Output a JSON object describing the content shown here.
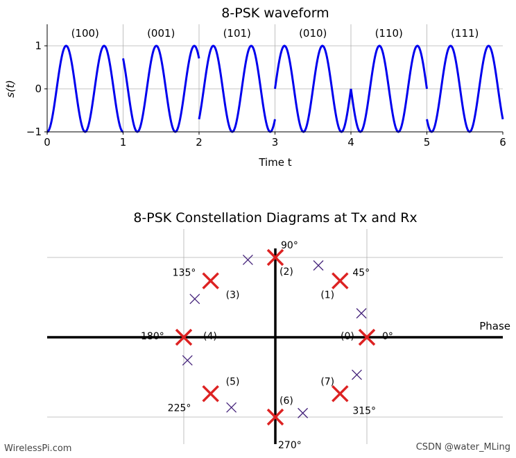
{
  "chart_data": [
    {
      "type": "line",
      "title": "8-PSK waveform",
      "xlabel": "Time t",
      "ylabel": "s(t)",
      "xlim": [
        0,
        6
      ],
      "ylim": [
        -1,
        1.5
      ],
      "x_ticks": [
        "0",
        "1",
        "2",
        "3",
        "4",
        "5",
        "6"
      ],
      "y_ticks": [
        "−1",
        "0",
        "1"
      ],
      "carrier_cycles_per_symbol": 2,
      "series": [
        {
          "color": "#0000ee"
        }
      ],
      "symbols": [
        {
          "label": "(100)",
          "phase_deg": 180
        },
        {
          "label": "(001)",
          "phase_deg": 45
        },
        {
          "label": "(101)",
          "phase_deg": 225
        },
        {
          "label": "(010)",
          "phase_deg": 270
        },
        {
          "label": "(110)",
          "phase_deg": 90
        },
        {
          "label": "(111)",
          "phase_deg": 135
        }
      ],
      "grid": true
    },
    {
      "type": "scatter",
      "title": "8-PSK Constellation Diagrams at Tx and Rx",
      "xlabel": "Phase",
      "xlim": [
        -1.25,
        1.25
      ],
      "ylim": [
        -1.15,
        1.15
      ],
      "grid": true,
      "tx_color": "#dd2222",
      "rx_color": "#44227a",
      "tx_points": [
        {
          "x": 1.0,
          "y": 0.0,
          "index": "(0)",
          "angle": "0°"
        },
        {
          "x": 0.707,
          "y": 0.707,
          "index": "(1)",
          "angle": "45°"
        },
        {
          "x": 0.0,
          "y": 1.0,
          "index": "(2)",
          "angle": "90°"
        },
        {
          "x": -0.707,
          "y": 0.707,
          "index": "(3)",
          "angle": "135°"
        },
        {
          "x": -1.0,
          "y": 0.0,
          "index": "(4)",
          "angle": "180°"
        },
        {
          "x": -0.707,
          "y": -0.707,
          "index": "(5)",
          "angle": "225°"
        },
        {
          "x": 0.0,
          "y": -1.0,
          "index": "(6)",
          "angle": "270°"
        },
        {
          "x": 0.707,
          "y": -0.707,
          "index": "(7)",
          "angle": "315°"
        }
      ],
      "rx_points": [
        {
          "x": 0.94,
          "y": 0.3
        },
        {
          "x": 0.47,
          "y": 0.9
        },
        {
          "x": -0.3,
          "y": 0.97
        },
        {
          "x": -0.88,
          "y": 0.48
        },
        {
          "x": -0.96,
          "y": -0.29
        },
        {
          "x": -0.48,
          "y": -0.88
        },
        {
          "x": 0.3,
          "y": -0.95
        },
        {
          "x": 0.89,
          "y": -0.47
        }
      ]
    }
  ],
  "watermarks": {
    "left": "WirelessPi.com",
    "right": "CSDN @water_MLing"
  }
}
